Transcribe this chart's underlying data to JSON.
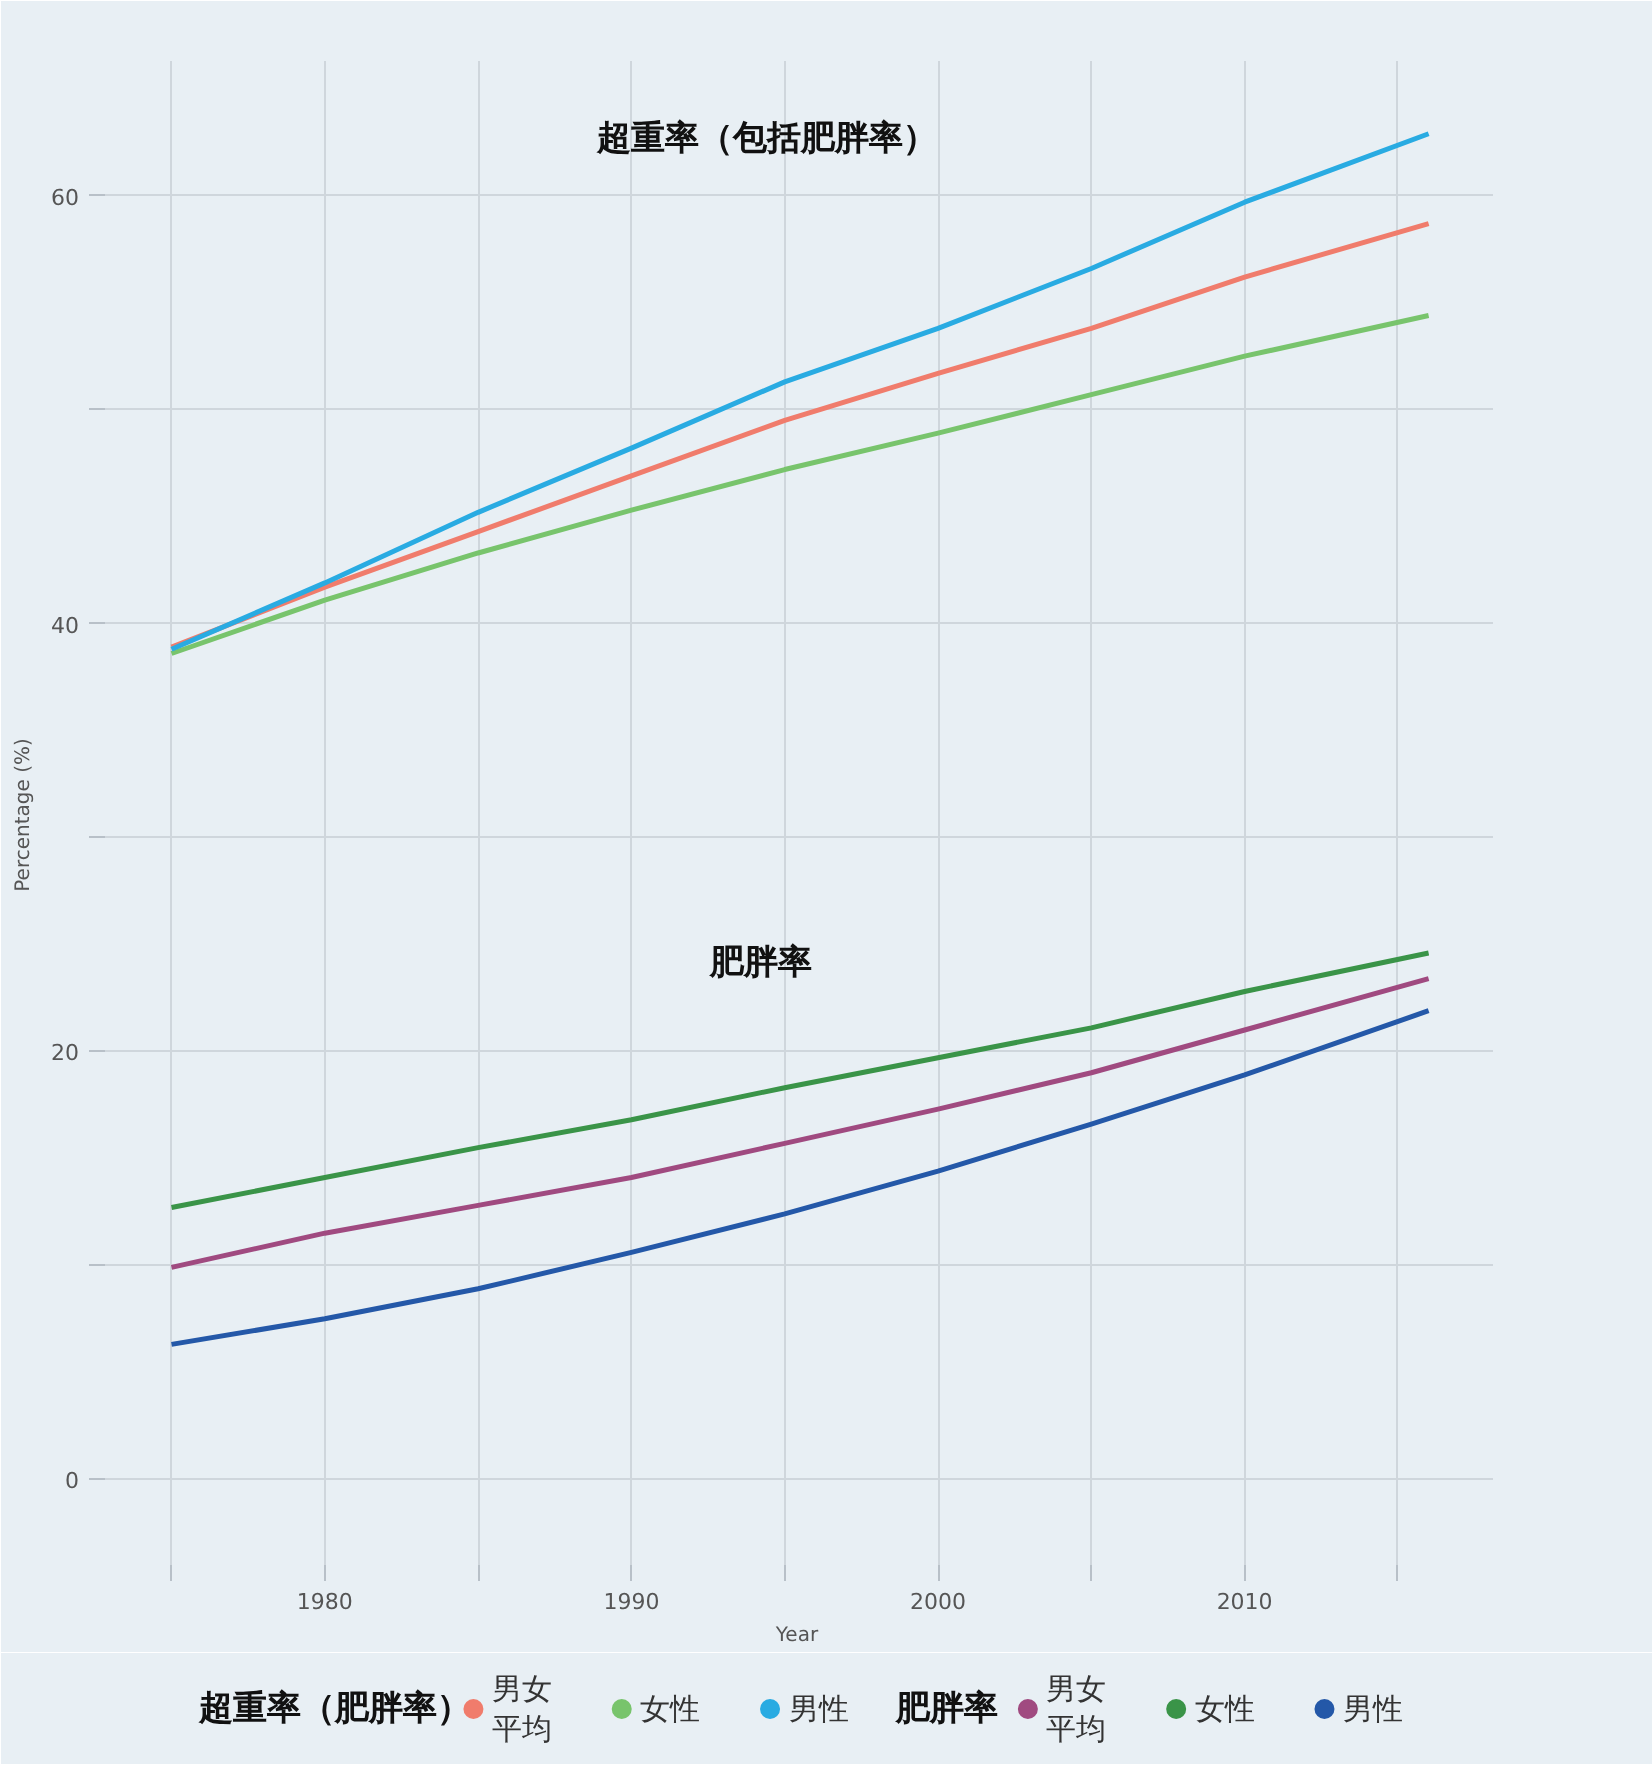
{
  "chart_data": {
    "type": "line",
    "xlabel": "Year",
    "ylabel": "Percentage (%)",
    "legend_title": "超重率（肥胖率）",
    "annotations": [
      "超重率（包括肥胖率）",
      "肥胖率",
      "肥胖率"
    ],
    "x": [
      1975,
      1980,
      1985,
      1990,
      1995,
      2000,
      2005,
      2010,
      2016
    ],
    "series": [
      {
        "name": "男女平均",
        "color": "#f07c6c",
        "values": [
          38.9,
          41.7,
          44.3,
          46.9,
          49.5,
          51.7,
          53.8,
          56.2,
          58.7
        ]
      },
      {
        "name": "女性",
        "color": "#78c46c",
        "values": [
          38.6,
          41.1,
          43.3,
          45.3,
          47.2,
          48.9,
          50.7,
          52.5,
          54.4
        ]
      },
      {
        "name": "男性",
        "color": "#29abe2",
        "values": [
          38.8,
          41.9,
          45.2,
          48.2,
          51.3,
          53.8,
          56.6,
          59.7,
          62.9
        ]
      },
      {
        "name": "男女平均",
        "color": "#a04a80",
        "values": [
          9.9,
          11.5,
          12.8,
          14.1,
          15.7,
          17.3,
          19.0,
          21.0,
          23.4
        ]
      },
      {
        "name": "女性",
        "color": "#3a9448",
        "values": [
          12.7,
          14.1,
          15.5,
          16.8,
          18.3,
          19.7,
          21.1,
          22.8,
          24.6
        ]
      },
      {
        "name": "男性",
        "color": "#2458a8",
        "values": [
          6.3,
          7.5,
          8.9,
          10.6,
          12.4,
          14.4,
          16.6,
          18.9,
          21.9
        ]
      }
    ],
    "xlim": [
      1972.7,
      2018.1
    ],
    "ylim": [
      -4.2,
      66.3
    ],
    "xticks": [
      {
        "value": 1975,
        "label": null
      },
      1980,
      {
        "value": 1985,
        "label": null
      },
      1990,
      {
        "value": 1995,
        "label": null
      },
      2000,
      {
        "value": 2005,
        "label": null
      },
      2010,
      {
        "value": 2015,
        "label": null
      }
    ],
    "yticks": [
      0,
      {
        "value": 10,
        "label": null
      },
      20,
      {
        "value": 30,
        "label": null
      },
      40,
      {
        "value": 50,
        "label": null
      },
      60
    ],
    "grid": true,
    "legend": "bottom"
  }
}
